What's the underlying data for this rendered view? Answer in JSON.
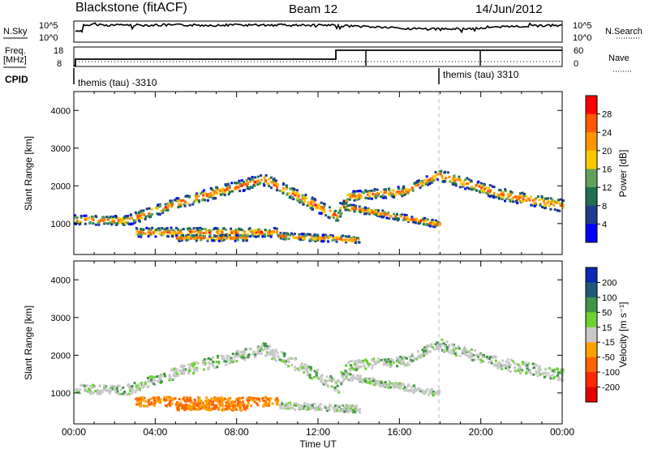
{
  "header": {
    "station": "Blackstone (fitACF)",
    "beam": "Beam 12",
    "date": "14/Jun/2012"
  },
  "status_panels": {
    "nsky_label": "N.Sky",
    "nsearch_label": "N.Search",
    "noise_ticks": [
      "10^5",
      "10^0"
    ],
    "freq_label_1": "Freq.",
    "freq_label_2": "[MHz]",
    "freq_ticks": [
      "18",
      "8"
    ],
    "nave_label": "Nave",
    "nave_ticks": [
      "60",
      "0"
    ],
    "cpid_label": "CPID",
    "cpid_segments": [
      {
        "text": "themis (tau) -3310",
        "start_hour": 0
      },
      {
        "text": "themis (tau) 3310",
        "start_hour": 18.0
      }
    ]
  },
  "chart_data": [
    {
      "type": "heatmap",
      "name": "power",
      "ylabel": "Slant Range [km]",
      "yticks": [
        1000,
        2000,
        3000,
        4000
      ],
      "ylim": [
        180,
        4500
      ],
      "xlim": [
        0,
        24
      ],
      "colorbar": {
        "label": "Power [dB]",
        "ticks": [
          "28",
          "24",
          "20",
          "16",
          "12",
          "8",
          "4"
        ],
        "colors": [
          "#ff0000",
          "#ff5a00",
          "#ff9600",
          "#ffc800",
          "#5fa05a",
          "#1e6e50",
          "#1e3c8c",
          "#0000ff"
        ]
      }
    },
    {
      "type": "heatmap",
      "name": "velocity",
      "ylabel": "Slant Range [km]",
      "yticks": [
        1000,
        2000,
        3000,
        4000
      ],
      "ylim": [
        180,
        4500
      ],
      "xlim": [
        0,
        24
      ],
      "colorbar": {
        "label": "Velocity [m s⁻¹]",
        "ticks": [
          "200",
          "100",
          "50",
          "15",
          "-15",
          "-50",
          "-100",
          "-200"
        ],
        "colors": [
          "#0a28b4",
          "#1e5a78",
          "#3c9646",
          "#6ed232",
          "#c8c8c8",
          "#ffa000",
          "#ff6400",
          "#ff2800",
          "#e60000"
        ]
      }
    }
  ],
  "xaxis": {
    "label": "Time UT",
    "ticks": [
      "00:00",
      "04:00",
      "08:00",
      "12:00",
      "16:00",
      "20:00",
      "00:00"
    ]
  },
  "colors": {
    "dashed_marker": "#bbbbbb",
    "ionospheric_gray": "#c8c8c8"
  }
}
